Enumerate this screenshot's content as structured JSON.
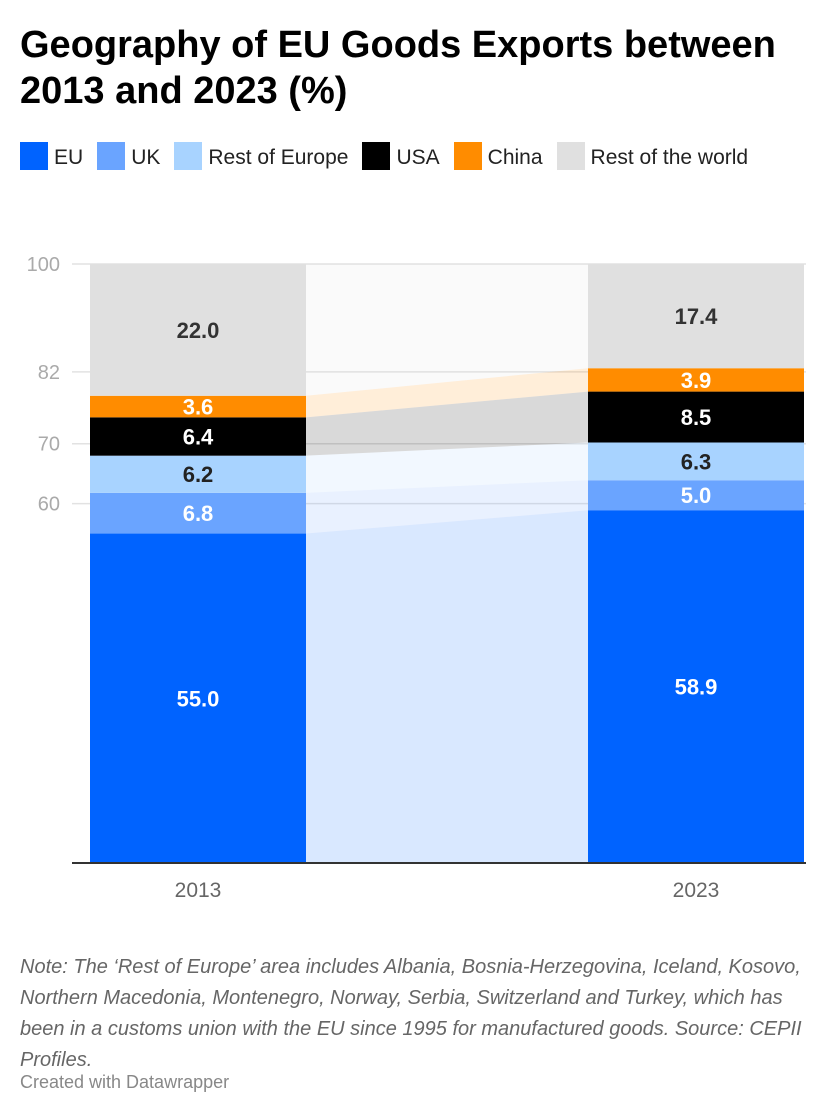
{
  "chart_data": {
    "type": "bar",
    "stacked": true,
    "title": "Geography of EU Goods Exports between 2013 and 2023 (%)",
    "categories": [
      "2013",
      "2023"
    ],
    "series": [
      {
        "name": "EU",
        "color": "#0063ff",
        "values": [
          55.0,
          58.9
        ],
        "label_color": "#ffffff"
      },
      {
        "name": "UK",
        "color": "#6aa4ff",
        "values": [
          6.8,
          5.0
        ],
        "label_color": "#ffffff"
      },
      {
        "name": "Rest of Europe",
        "color": "#a8d3ff",
        "values": [
          6.2,
          6.3
        ],
        "label_color": "#222222"
      },
      {
        "name": "USA",
        "color": "#000000",
        "values": [
          6.4,
          8.5
        ],
        "label_color": "#ffffff"
      },
      {
        "name": "China",
        "color": "#ff8c00",
        "values": [
          3.6,
          3.9
        ],
        "label_color": "#ffffff"
      },
      {
        "name": "Rest of the world",
        "color": "#e0e0e0",
        "values": [
          22.0,
          17.4
        ],
        "label_color": "#333333"
      }
    ],
    "yticks": [
      "60",
      "70",
      "82",
      "100"
    ],
    "ylim": [
      0,
      100
    ],
    "grid": true,
    "legend_position": "top-left",
    "xlabel": "",
    "ylabel": ""
  },
  "note": "Note: The ‘Rest of Europe’ area includes Albania, Bosnia-Herzegovina, Iceland, Kosovo, Northern Macedonia, Montenegro, Norway, Serbia, Switzerland and Turkey, which has been in a customs union with the EU since 1995 for manufactured goods. Source: CEPII Profiles.",
  "credit": "Created with Datawrapper"
}
